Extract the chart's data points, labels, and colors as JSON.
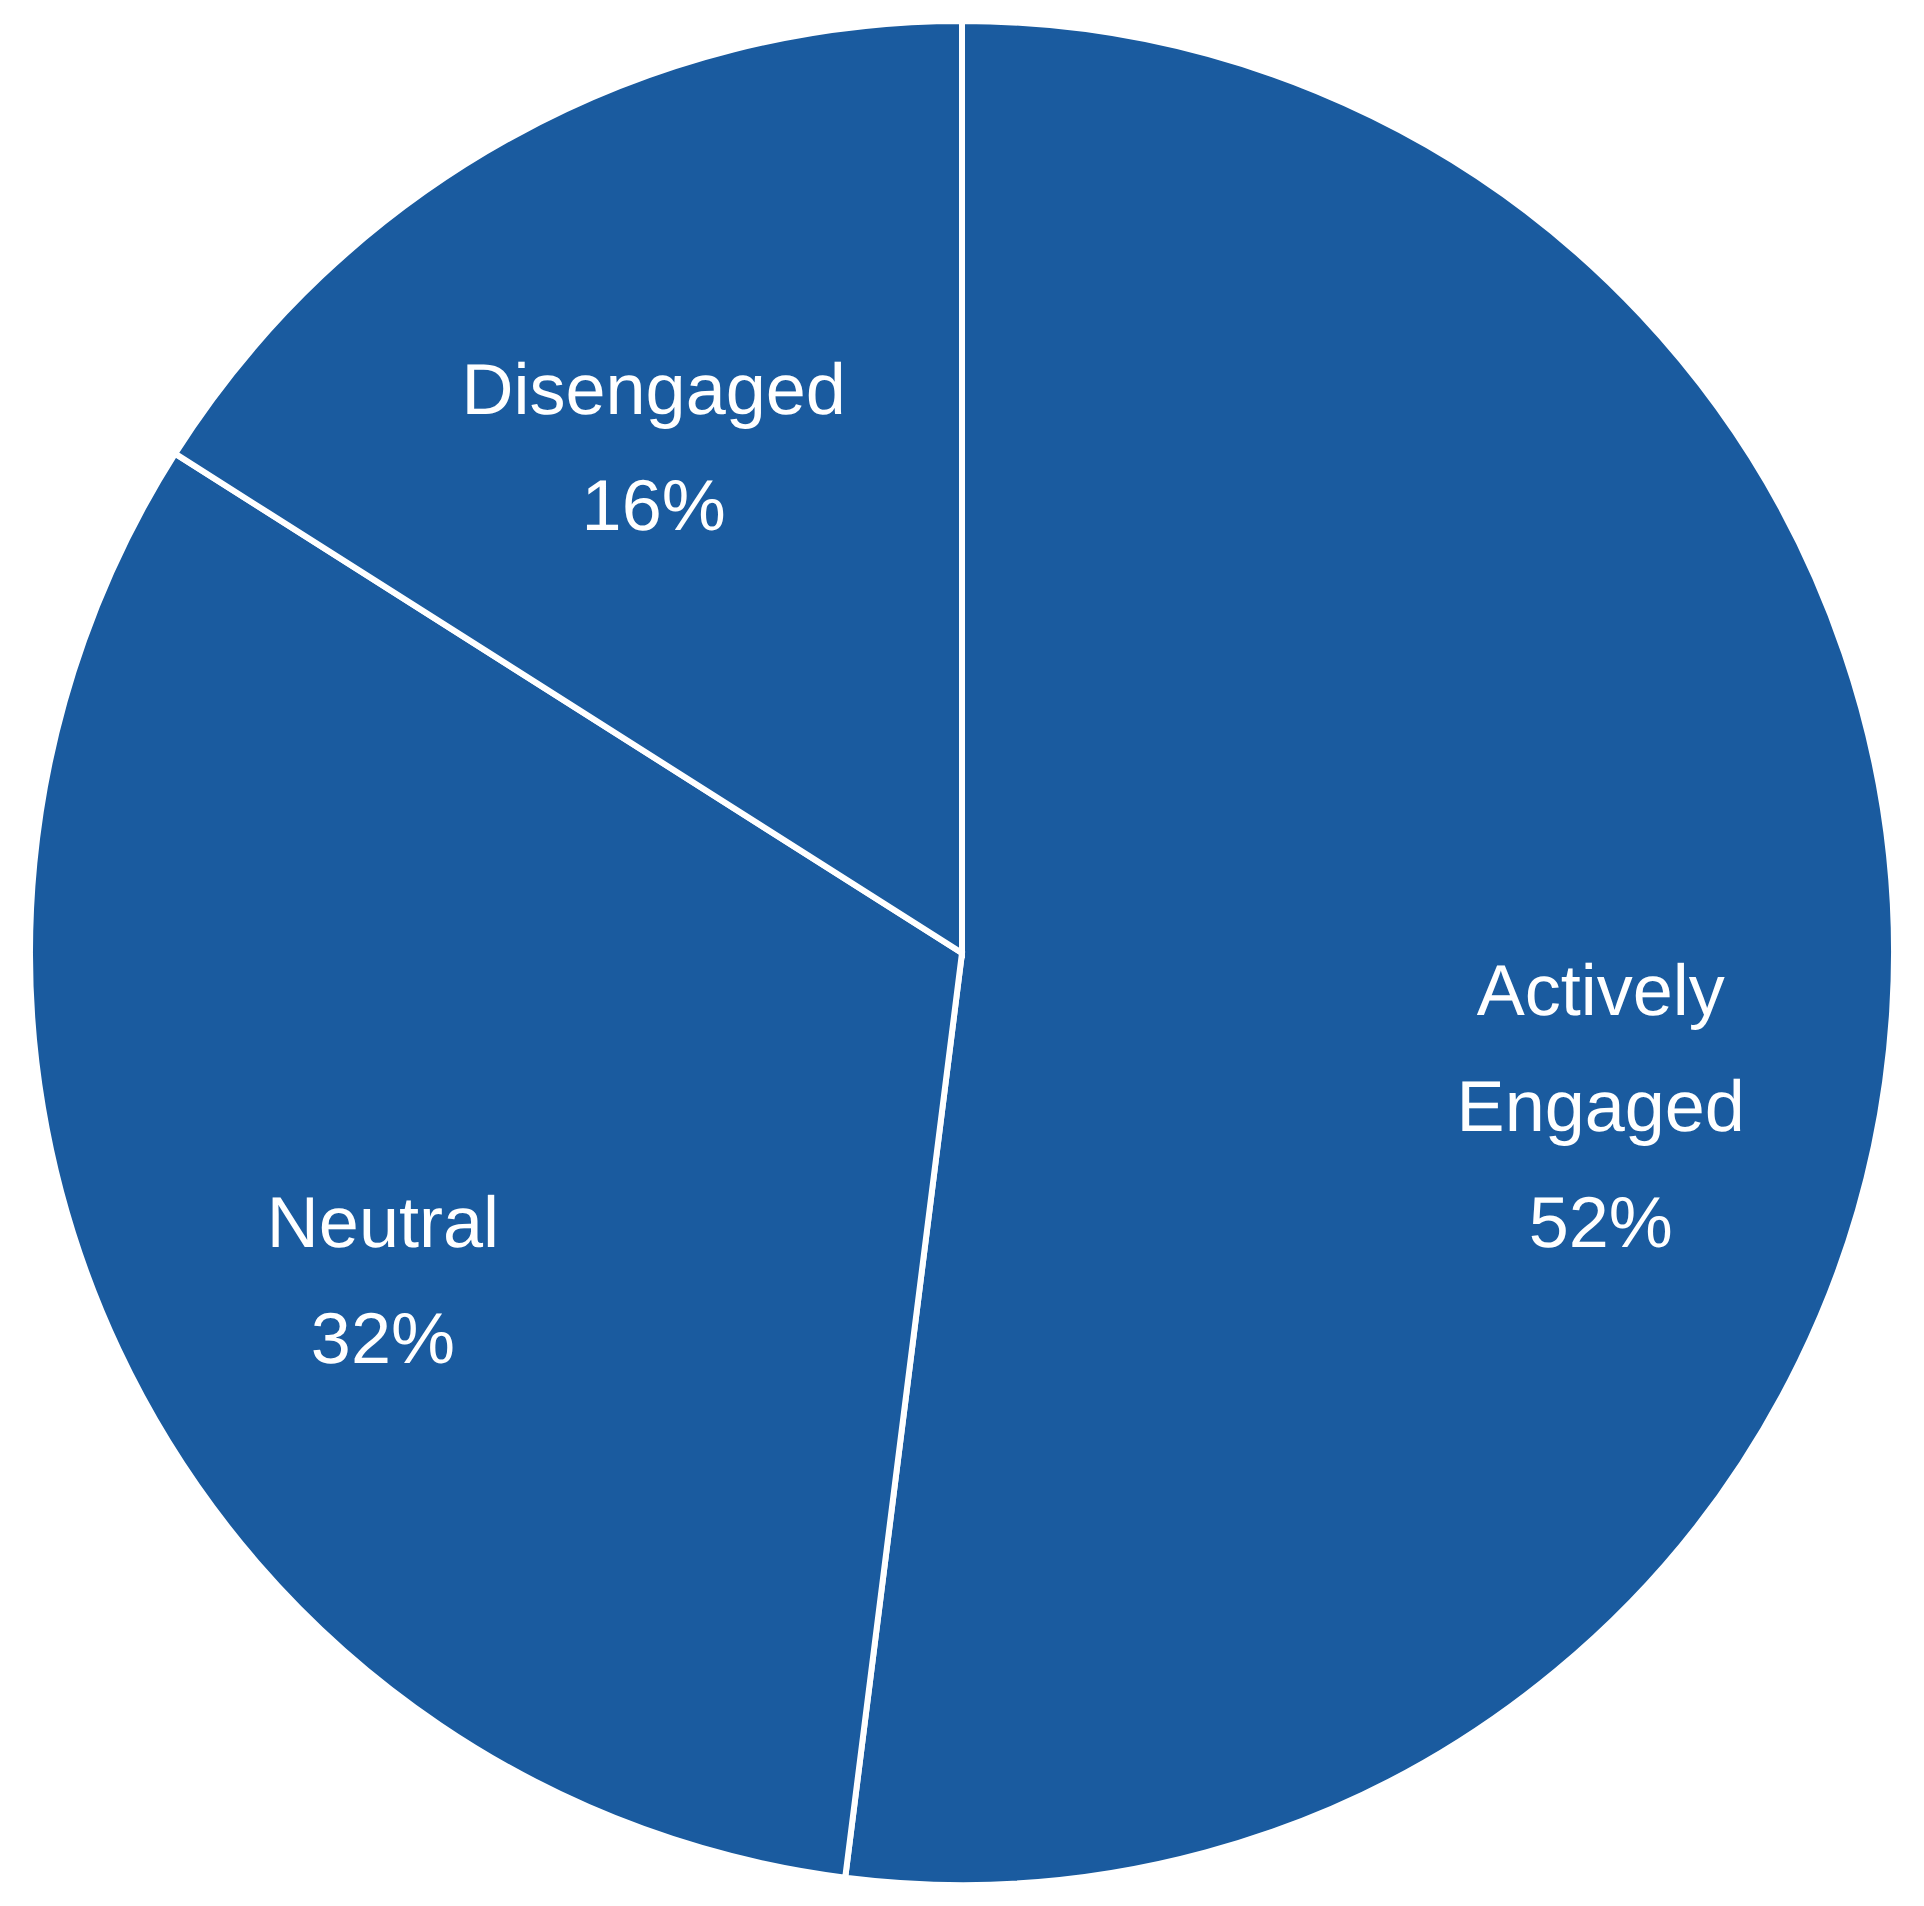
{
  "chart_data": {
    "type": "pie",
    "categories": [
      "Actively Engaged",
      "Neutral",
      "Disengaged"
    ],
    "values": [
      52,
      32,
      16
    ],
    "value_labels": [
      "52%",
      "32%",
      "16%"
    ],
    "colors": [
      "#1a5b9f",
      "#1a5b9f",
      "#1a5b9f"
    ]
  }
}
